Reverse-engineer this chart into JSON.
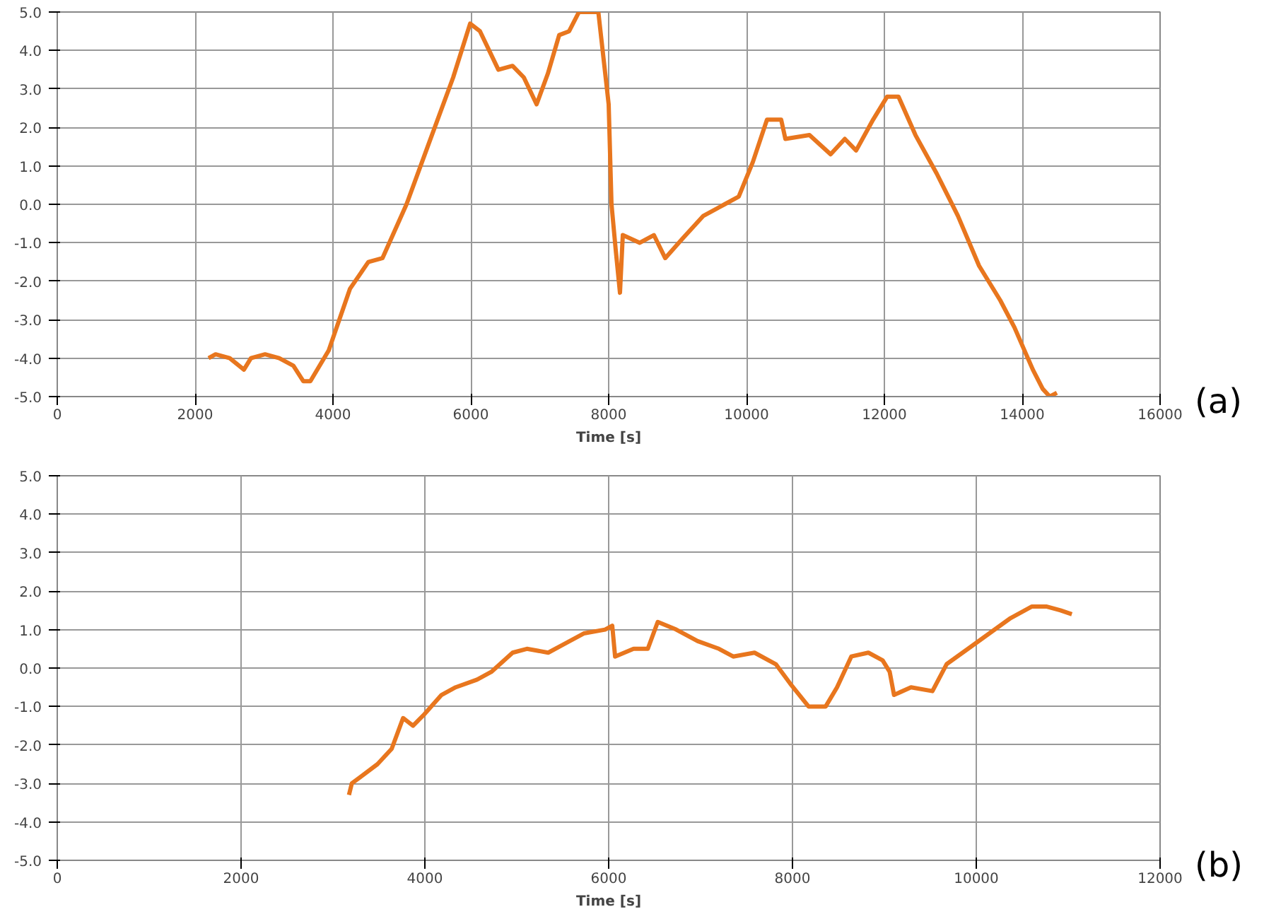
{
  "chart_data": [
    {
      "type": "line",
      "xlabel": "Time [s]",
      "annotations": [
        "(a)"
      ],
      "grid": true,
      "line_style": "solid",
      "xlim": [
        0,
        16000
      ],
      "xticks": [
        0,
        2000,
        4000,
        6000,
        8000,
        10000,
        12000,
        14000,
        16000
      ],
      "ylim": [
        -5,
        5
      ],
      "yticks": [
        {
          "value": -5,
          "label": "-5.0"
        },
        {
          "value": -4,
          "label": "-4.0"
        },
        {
          "value": -3,
          "label": "-3.0"
        },
        {
          "value": -2,
          "label": "-2.0"
        },
        {
          "value": -1,
          "label": "-1.0"
        },
        {
          "value": 0,
          "label": "0.0"
        },
        {
          "value": 1,
          "label": "1.0"
        },
        {
          "value": 2,
          "label": "2.0"
        },
        {
          "value": 3,
          "label": "3.0"
        },
        {
          "value": 4,
          "label": "4.0"
        },
        {
          "value": 5,
          "label": "5.0"
        }
      ],
      "x": [
        2195,
        2297,
        2502,
        2708,
        2810,
        3015,
        3220,
        3426,
        3569,
        3672,
        3938,
        4246,
        4513,
        4718,
        5067,
        5374,
        5744,
        5990,
        6133,
        6400,
        6605,
        6769,
        6954,
        7118,
        7282,
        7426,
        7569,
        7850,
        8000,
        8041,
        8103,
        8164,
        8205,
        8451,
        8656,
        8820,
        9067,
        9374,
        9682,
        9887,
        10092,
        10297,
        10503,
        10564,
        10913,
        11220,
        11426,
        11590,
        11836,
        12041,
        12205,
        12451,
        12759,
        13067,
        13374,
        13682,
        13887,
        14154,
        14297,
        14400,
        14503
      ],
      "series": [
        {
          "color": "#e8761e",
          "values": [
            -4.0,
            -3.9,
            -4.0,
            -4.3,
            -4.0,
            -3.9,
            -4.0,
            -4.2,
            -4.6,
            -4.6,
            -3.8,
            -2.2,
            -1.5,
            -1.4,
            0.0,
            1.5,
            3.3,
            4.7,
            4.5,
            3.5,
            3.6,
            3.3,
            2.6,
            3.4,
            4.4,
            4.5,
            5.0,
            5.0,
            2.6,
            0.0,
            -1.2,
            -2.3,
            -0.8,
            -1.0,
            -0.8,
            -1.4,
            -0.9,
            -0.3,
            0.0,
            0.2,
            1.1,
            2.2,
            2.2,
            1.7,
            1.8,
            1.3,
            1.7,
            1.4,
            2.2,
            2.8,
            2.8,
            1.8,
            0.8,
            -0.3,
            -1.6,
            -2.5,
            -3.2,
            -4.3,
            -4.8,
            -5.0,
            -4.9
          ]
        }
      ]
    },
    {
      "type": "line",
      "xlabel": "Time [s]",
      "annotations": [
        "(b)"
      ],
      "grid": true,
      "line_style": "solid",
      "xlim": [
        0,
        12000
      ],
      "xticks": [
        0,
        2000,
        4000,
        6000,
        8000,
        10000,
        12000
      ],
      "ylim": [
        -5,
        5
      ],
      "yticks": [
        {
          "value": -5,
          "label": "-5.0"
        },
        {
          "value": -4,
          "label": "-4.0"
        },
        {
          "value": -3,
          "label": "-3.0"
        },
        {
          "value": -2,
          "label": "-2.0"
        },
        {
          "value": -1,
          "label": "-1.0"
        },
        {
          "value": 0,
          "label": "0.0"
        },
        {
          "value": 1,
          "label": "1.0"
        },
        {
          "value": 2,
          "label": "2.0"
        },
        {
          "value": 3,
          "label": "3.0"
        },
        {
          "value": 4,
          "label": "4.0"
        },
        {
          "value": 5,
          "label": "5.0"
        }
      ],
      "x": [
        3174,
        3205,
        3484,
        3639,
        3763,
        3871,
        3995,
        4181,
        4335,
        4568,
        4723,
        4955,
        5110,
        5342,
        5497,
        5729,
        5961,
        6039,
        6070,
        6271,
        6426,
        6534,
        6735,
        6968,
        7200,
        7355,
        7587,
        7819,
        7974,
        8175,
        8361,
        8485,
        8640,
        8826,
        8981,
        9058,
        9105,
        9290,
        9523,
        9677,
        9910,
        10142,
        10374,
        10606,
        10761,
        10916,
        11040
      ],
      "series": [
        {
          "color": "#e8761e",
          "values": [
            -3.3,
            -3.0,
            -2.5,
            -2.1,
            -1.3,
            -1.5,
            -1.2,
            -0.7,
            -0.5,
            -0.3,
            -0.1,
            0.4,
            0.5,
            0.4,
            0.6,
            0.9,
            1.0,
            1.1,
            0.3,
            0.5,
            0.5,
            1.2,
            1.0,
            0.7,
            0.5,
            0.3,
            0.4,
            0.1,
            -0.4,
            -1.0,
            -1.0,
            -0.5,
            0.3,
            0.4,
            0.2,
            -0.1,
            -0.7,
            -0.5,
            -0.6,
            0.1,
            0.5,
            0.9,
            1.3,
            1.6,
            1.6,
            1.5,
            1.4
          ]
        }
      ]
    }
  ]
}
